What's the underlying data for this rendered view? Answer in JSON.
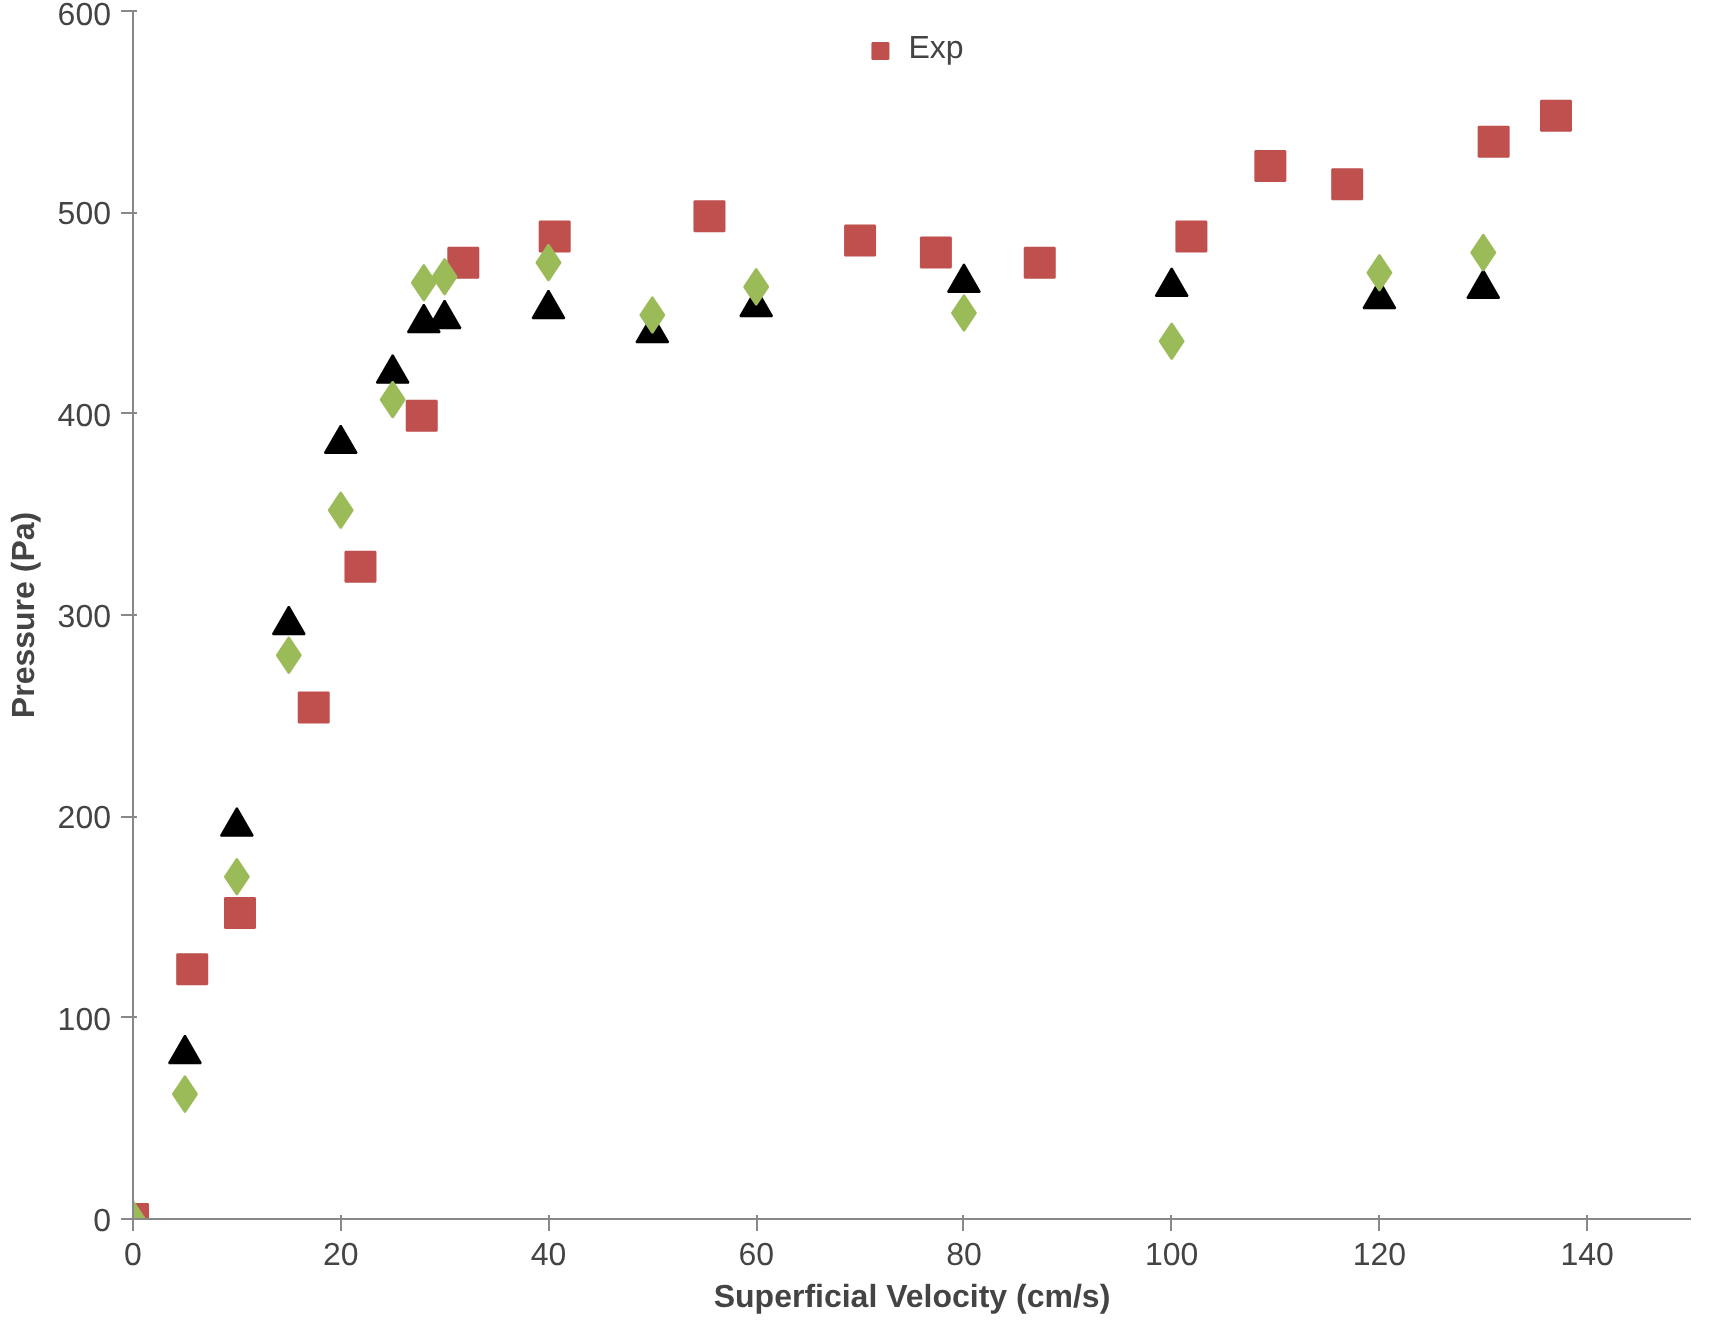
{
  "chart_data": {
    "type": "scatter",
    "xlabel": "Superficial Velocity (cm/s)",
    "ylabel": "Pressure (Pa)",
    "xlim": [
      0,
      150
    ],
    "xticks": [
      0,
      20,
      40,
      60,
      80,
      100,
      120,
      140
    ],
    "ylim": [
      0,
      600
    ],
    "yticks": [
      0,
      100,
      200,
      300,
      400,
      500,
      600
    ],
    "grid": false,
    "legend": "top",
    "series": [
      {
        "name": "Exp",
        "color": "#c0504d",
        "marker": "square",
        "x": [
          0,
          5.7,
          10.3,
          17.4,
          21.9,
          27.8,
          31.8,
          40.6,
          55.5,
          70,
          77.3,
          87.3,
          101.9,
          109.5,
          116.9,
          131,
          137
        ],
        "values": [
          0,
          124,
          152,
          254,
          324,
          399,
          475,
          488,
          498,
          486,
          480,
          475,
          488,
          523,
          514,
          535,
          548
        ]
      },
      {
        "color": "#000000",
        "marker": "triangle",
        "x": [
          5,
          10,
          15,
          20,
          25,
          28,
          30,
          40,
          50,
          60,
          80,
          100,
          120,
          130
        ],
        "values": [
          82,
          195,
          295,
          385,
          420,
          445,
          447,
          452,
          440,
          453,
          465,
          463,
          457,
          462
        ]
      },
      {
        "color": "#9bbb59",
        "marker": "diamond",
        "x": [
          0,
          5,
          10,
          15,
          20,
          25,
          28,
          30,
          40,
          50,
          60,
          80,
          100,
          120,
          130
        ],
        "values": [
          0,
          62,
          170,
          280,
          352,
          407,
          465,
          468,
          475,
          449,
          463,
          450,
          436,
          470,
          480
        ]
      }
    ]
  }
}
